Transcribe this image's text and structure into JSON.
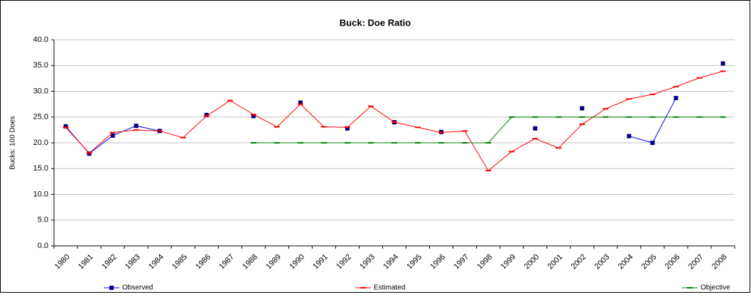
{
  "chart_data": {
    "type": "line",
    "title": "Buck: Doe Ratio",
    "y_label": "Bucks: 100 Does",
    "categories": [
      "1980",
      "1981",
      "1982",
      "1983",
      "1984",
      "1985",
      "1986",
      "1987",
      "1988",
      "1989",
      "1990",
      "1991",
      "1992",
      "1993",
      "1994",
      "1995",
      "1996",
      "1997",
      "1998",
      "1999",
      "2000",
      "2001",
      "2002",
      "2003",
      "2004",
      "2005",
      "2006",
      "2007",
      "2008"
    ],
    "series": [
      {
        "name": "Observed",
        "color": "#0000ff",
        "marker": "square",
        "values": [
          23.2,
          17.9,
          21.4,
          23.3,
          22.3,
          null,
          25.4,
          null,
          25.2,
          null,
          27.8,
          null,
          22.8,
          null,
          24.0,
          null,
          22.1,
          null,
          null,
          null,
          22.8,
          null,
          26.7,
          null,
          21.3,
          20.0,
          28.7,
          null,
          35.4
        ]
      },
      {
        "name": "Estimated",
        "color": "#ff0000",
        "marker": "dash",
        "values": [
          23.0,
          18.0,
          22.0,
          22.5,
          22.3,
          21.0,
          25.2,
          28.2,
          25.5,
          23.1,
          27.5,
          23.1,
          23.0,
          27.1,
          24.0,
          23.0,
          22.0,
          22.3,
          14.6,
          18.3,
          20.8,
          19.0,
          23.6,
          26.6,
          28.5,
          29.4,
          30.9,
          32.6,
          33.9
        ]
      },
      {
        "name": "Objective",
        "color": "#008000",
        "marker": "dash",
        "values": [
          null,
          null,
          null,
          null,
          null,
          null,
          null,
          null,
          20,
          20,
          20,
          20,
          20,
          20,
          20,
          20,
          20,
          20,
          20,
          25,
          25,
          25,
          25,
          25,
          25,
          25,
          25,
          25,
          25
        ]
      }
    ],
    "ylim": [
      0,
      40
    ],
    "yticks": [
      {
        "value": 0,
        "label": "0.0"
      },
      {
        "value": 5,
        "label": "5.0"
      },
      {
        "value": 10,
        "label": "10.0"
      },
      {
        "value": 15,
        "label": "15.0"
      },
      {
        "value": 20,
        "label": "20.0"
      },
      {
        "value": 25,
        "label": "25.0"
      },
      {
        "value": 30,
        "label": "30.0"
      },
      {
        "value": 35,
        "label": "35.0"
      },
      {
        "value": 40,
        "label": "40.0"
      }
    ],
    "grid": true,
    "legend": "bottom"
  }
}
